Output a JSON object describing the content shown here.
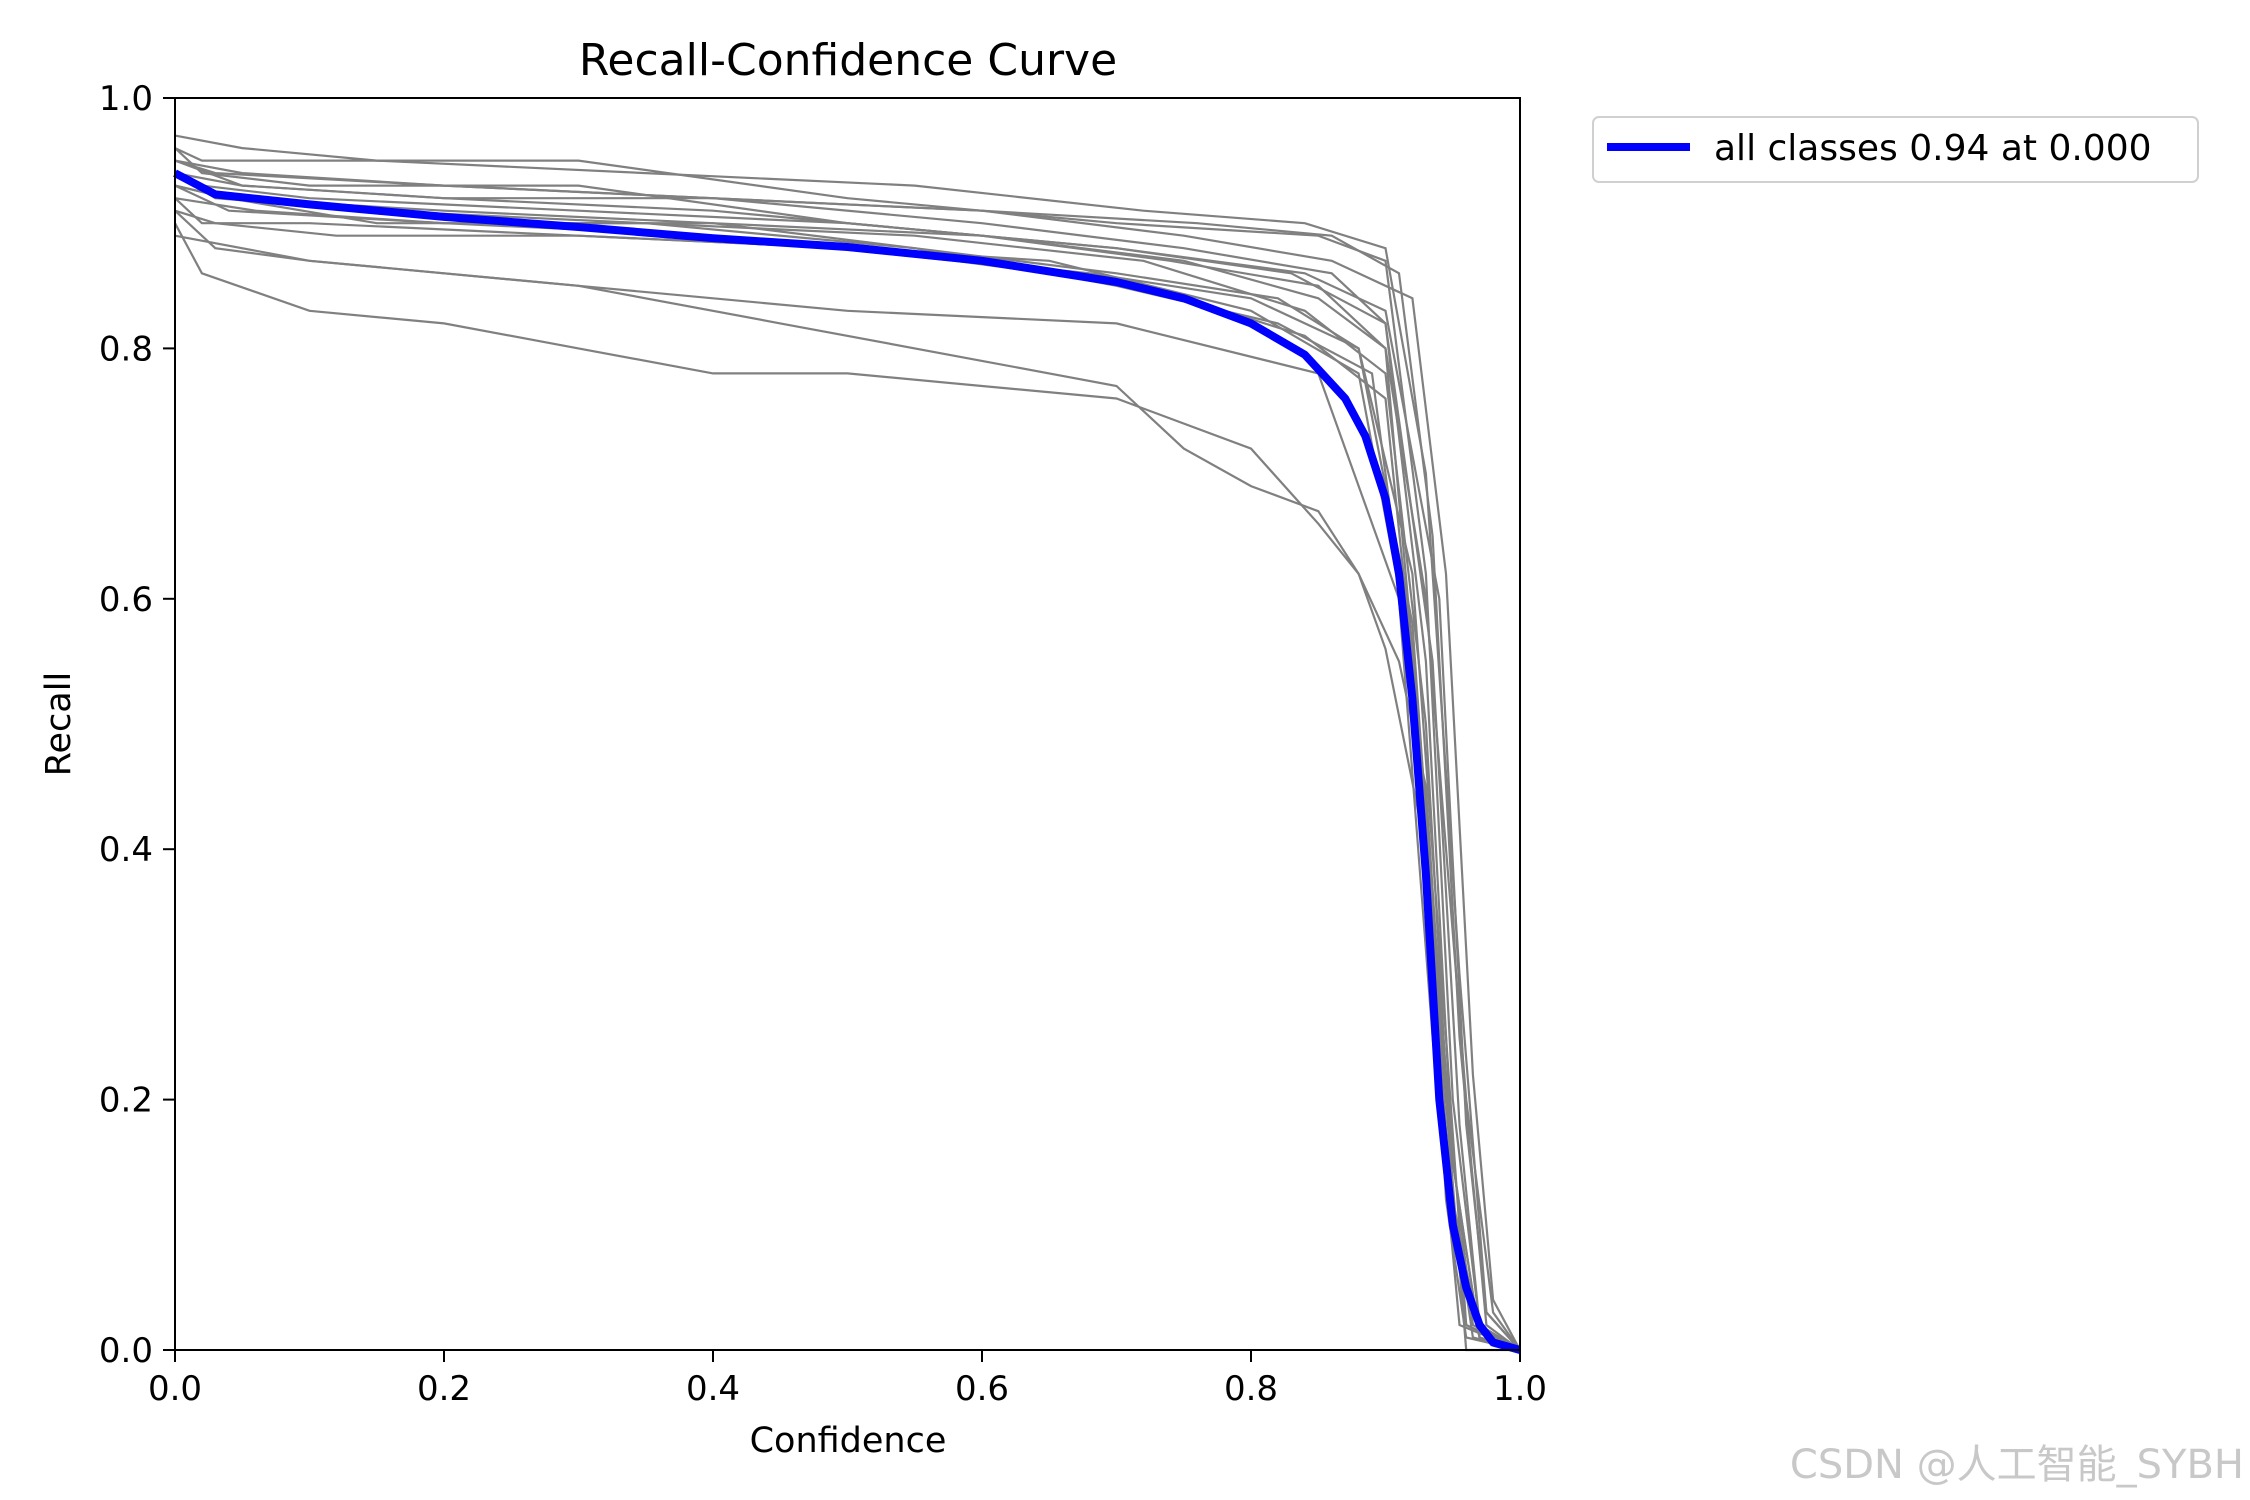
{
  "chart_data": {
    "type": "line",
    "title": "Recall-Confidence Curve",
    "xlabel": "Confidence",
    "ylabel": "Recall",
    "xlim": [
      0.0,
      1.0
    ],
    "ylim": [
      0.0,
      1.0
    ],
    "xticks": [
      "0.0",
      "0.2",
      "0.4",
      "0.6",
      "0.8",
      "1.0"
    ],
    "yticks": [
      "0.0",
      "0.2",
      "0.4",
      "0.6",
      "0.8",
      "1.0"
    ],
    "grid": false,
    "legend_placement": "outside-top-right",
    "legend": [
      {
        "label": "all classes 0.94 at 0.000",
        "color": "#0000ff"
      }
    ],
    "per_class_color": "#808080",
    "per_class_curves": [
      {
        "x": [
          0,
          0.02,
          0.1,
          0.3,
          0.5,
          0.7,
          0.85,
          0.9,
          0.93,
          0.95,
          0.97,
          1.0
        ],
        "y": [
          0.96,
          0.95,
          0.95,
          0.95,
          0.92,
          0.9,
          0.89,
          0.87,
          0.62,
          0.2,
          0.02,
          0.0
        ]
      },
      {
        "x": [
          0,
          0.03,
          0.2,
          0.4,
          0.6,
          0.75,
          0.86,
          0.9,
          0.93,
          0.95,
          0.97,
          1.0
        ],
        "y": [
          0.95,
          0.94,
          0.93,
          0.92,
          0.9,
          0.88,
          0.86,
          0.82,
          0.55,
          0.15,
          0.01,
          0.0
        ]
      },
      {
        "x": [
          0,
          0.05,
          0.2,
          0.4,
          0.6,
          0.75,
          0.85,
          0.9,
          0.925,
          0.945,
          0.96,
          1.0
        ],
        "y": [
          0.94,
          0.93,
          0.92,
          0.91,
          0.89,
          0.87,
          0.84,
          0.8,
          0.5,
          0.12,
          0.01,
          0.0
        ]
      },
      {
        "x": [
          0,
          0.04,
          0.2,
          0.4,
          0.55,
          0.7,
          0.82,
          0.88,
          0.92,
          0.945,
          0.96,
          1.0
        ],
        "y": [
          0.93,
          0.91,
          0.9,
          0.9,
          0.88,
          0.86,
          0.84,
          0.8,
          0.58,
          0.2,
          0.0,
          0.0
        ]
      },
      {
        "x": [
          0,
          0.02,
          0.1,
          0.3,
          0.5,
          0.65,
          0.8,
          0.88,
          0.92,
          0.945,
          0.965,
          1.0
        ],
        "y": [
          0.92,
          0.9,
          0.9,
          0.89,
          0.88,
          0.87,
          0.83,
          0.78,
          0.55,
          0.2,
          0.02,
          0.0
        ]
      },
      {
        "x": [
          0,
          0.05,
          0.15,
          0.35,
          0.55,
          0.72,
          0.84,
          0.9,
          0.93,
          0.955,
          0.975,
          1.0
        ],
        "y": [
          0.97,
          0.96,
          0.95,
          0.94,
          0.93,
          0.91,
          0.9,
          0.88,
          0.7,
          0.3,
          0.03,
          0.0
        ]
      },
      {
        "x": [
          0,
          0.03,
          0.1,
          0.2,
          0.3,
          0.5,
          0.7,
          0.85,
          0.91,
          0.935,
          0.955,
          1.0
        ],
        "y": [
          0.91,
          0.88,
          0.87,
          0.86,
          0.85,
          0.83,
          0.82,
          0.78,
          0.6,
          0.25,
          0.02,
          0.0
        ]
      },
      {
        "x": [
          0,
          0.02,
          0.1,
          0.2,
          0.3,
          0.4,
          0.5,
          0.6,
          0.7,
          0.8,
          0.85,
          0.88,
          0.9,
          0.93,
          0.95,
          0.97,
          1.0
        ],
        "y": [
          0.9,
          0.86,
          0.83,
          0.82,
          0.8,
          0.78,
          0.78,
          0.77,
          0.76,
          0.72,
          0.66,
          0.62,
          0.56,
          0.4,
          0.1,
          0.01,
          0.0
        ]
      },
      {
        "x": [
          0,
          0.1,
          0.2,
          0.3,
          0.45,
          0.6,
          0.7,
          0.75,
          0.8,
          0.85,
          0.88,
          0.91,
          0.93,
          0.95,
          0.97,
          1.0
        ],
        "y": [
          0.89,
          0.87,
          0.86,
          0.85,
          0.82,
          0.79,
          0.77,
          0.72,
          0.69,
          0.67,
          0.62,
          0.55,
          0.45,
          0.12,
          0.01,
          0.0
        ]
      },
      {
        "x": [
          0,
          0.05,
          0.2,
          0.4,
          0.6,
          0.76,
          0.86,
          0.91,
          0.935,
          0.955,
          0.975,
          1.0
        ],
        "y": [
          0.95,
          0.93,
          0.92,
          0.92,
          0.91,
          0.9,
          0.89,
          0.86,
          0.65,
          0.25,
          0.02,
          0.0
        ]
      },
      {
        "x": [
          0,
          0.03,
          0.15,
          0.35,
          0.55,
          0.7,
          0.82,
          0.89,
          0.925,
          0.95,
          0.97,
          1.0
        ],
        "y": [
          0.94,
          0.92,
          0.91,
          0.9,
          0.88,
          0.85,
          0.82,
          0.78,
          0.5,
          0.15,
          0.01,
          0.0
        ]
      },
      {
        "x": [
          0,
          0.04,
          0.2,
          0.4,
          0.6,
          0.74,
          0.85,
          0.9,
          0.93,
          0.96,
          0.98,
          1.0
        ],
        "y": [
          0.93,
          0.92,
          0.91,
          0.9,
          0.89,
          0.87,
          0.85,
          0.8,
          0.6,
          0.2,
          0.03,
          0.0
        ]
      },
      {
        "x": [
          0,
          0.02,
          0.1,
          0.3,
          0.5,
          0.7,
          0.83,
          0.9,
          0.935,
          0.955,
          0.97,
          1.0
        ],
        "y": [
          0.96,
          0.94,
          0.93,
          0.93,
          0.9,
          0.88,
          0.86,
          0.82,
          0.55,
          0.18,
          0.02,
          0.0
        ]
      },
      {
        "x": [
          0,
          0.06,
          0.2,
          0.4,
          0.58,
          0.72,
          0.84,
          0.9,
          0.92,
          0.94,
          0.96,
          1.0
        ],
        "y": [
          0.92,
          0.91,
          0.9,
          0.89,
          0.87,
          0.85,
          0.81,
          0.76,
          0.55,
          0.2,
          0.02,
          0.0
        ]
      },
      {
        "x": [
          0,
          0.03,
          0.12,
          0.3,
          0.5,
          0.68,
          0.8,
          0.88,
          0.92,
          0.945,
          0.96,
          1.0
        ],
        "y": [
          0.91,
          0.9,
          0.89,
          0.89,
          0.88,
          0.86,
          0.84,
          0.8,
          0.62,
          0.25,
          0.02,
          0.0
        ]
      },
      {
        "x": [
          0,
          0.05,
          0.2,
          0.4,
          0.6,
          0.75,
          0.86,
          0.92,
          0.945,
          0.965,
          0.98,
          1.0
        ],
        "y": [
          0.95,
          0.94,
          0.93,
          0.92,
          0.91,
          0.89,
          0.87,
          0.84,
          0.62,
          0.22,
          0.04,
          0.0
        ]
      },
      {
        "x": [
          0,
          0.04,
          0.15,
          0.35,
          0.55,
          0.72,
          0.84,
          0.9,
          0.93,
          0.95,
          0.965,
          1.0
        ],
        "y": [
          0.93,
          0.92,
          0.9,
          0.9,
          0.89,
          0.87,
          0.83,
          0.78,
          0.5,
          0.12,
          0.01,
          0.0
        ]
      },
      {
        "x": [
          0,
          0.02,
          0.1,
          0.3,
          0.5,
          0.7,
          0.84,
          0.9,
          0.94,
          0.96,
          0.975,
          1.0
        ],
        "y": [
          0.94,
          0.93,
          0.92,
          0.91,
          0.9,
          0.88,
          0.86,
          0.83,
          0.6,
          0.18,
          0.03,
          0.0
        ]
      }
    ],
    "series": [
      {
        "name": "all classes 0.94 at 0.000",
        "x": [
          0.0,
          0.03,
          0.1,
          0.2,
          0.3,
          0.4,
          0.5,
          0.6,
          0.7,
          0.75,
          0.8,
          0.84,
          0.87,
          0.885,
          0.9,
          0.91,
          0.92,
          0.93,
          0.94,
          0.95,
          0.96,
          0.97,
          0.98,
          1.0
        ],
        "y": [
          0.94,
          0.923,
          0.915,
          0.905,
          0.897,
          0.888,
          0.881,
          0.87,
          0.853,
          0.84,
          0.82,
          0.795,
          0.76,
          0.73,
          0.68,
          0.62,
          0.52,
          0.38,
          0.2,
          0.1,
          0.05,
          0.02,
          0.006,
          0.0
        ]
      }
    ]
  },
  "watermark": "CSDN @人工智能_SYBH"
}
